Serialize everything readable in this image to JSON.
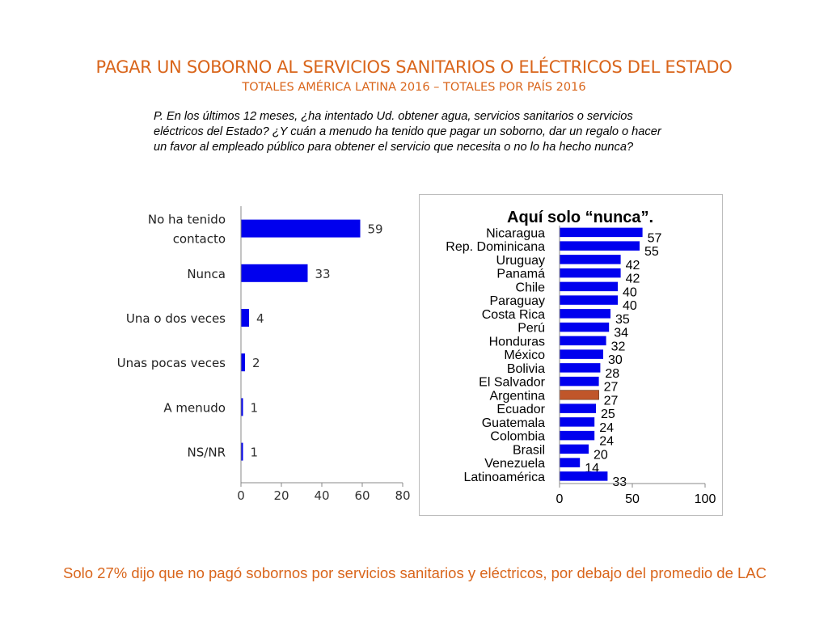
{
  "title": "PAGAR UN SOBORNO AL SERVICIOS SANITARIOS O ELÉCTRICOS DEL ESTADO",
  "subtitle": "TOTALES AMÉRICA LATINA 2016 – TOTALES POR PAÍS 2016",
  "question": "P. En los últimos 12 meses, ¿ha intentado Ud. obtener agua, servicios sanitarios o servicios eléctricos del Estado? ¿Y cuán a menudo ha tenido que pagar un soborno, dar un regalo o hacer un favor al empleado público para obtener el servicio que necesita o no lo ha hecho nunca?",
  "footer": "Solo 27% dijo que no pagó sobornos por servicios sanitarios y eléctricos, por debajo del promedio de LAC",
  "colors": {
    "bar": "#0000ee",
    "highlight": "#c0562a",
    "accent": "#d9651b"
  },
  "chart_data": [
    {
      "type": "bar",
      "orientation": "horizontal",
      "title": "",
      "categories": [
        [
          "No ha tenido",
          "contacto"
        ],
        [
          "Nunca"
        ],
        [
          "Una o dos veces"
        ],
        [
          "Unas pocas veces"
        ],
        [
          "A menudo"
        ],
        [
          "NS/NR"
        ]
      ],
      "values": [
        59,
        33,
        4,
        2,
        1,
        1
      ],
      "xlim": [
        0,
        80
      ],
      "xticks": [
        0,
        20,
        40,
        60,
        80
      ],
      "grid": false
    },
    {
      "type": "bar",
      "orientation": "horizontal",
      "title": "Aquí solo “nunca”.",
      "categories": [
        "Nicaragua",
        "Rep. Dominicana",
        "Uruguay",
        "Panamá",
        "Chile",
        "Paraguay",
        "Costa Rica",
        "Perú",
        "Honduras",
        "México",
        "Bolivia",
        "El Salvador",
        "Argentina",
        "Ecuador",
        "Guatemala",
        "Colombia",
        "Brasil",
        "Venezuela",
        "Latinoamérica"
      ],
      "values": [
        57,
        55,
        42,
        42,
        40,
        40,
        35,
        34,
        32,
        30,
        28,
        27,
        27,
        25,
        24,
        24,
        20,
        14,
        33
      ],
      "highlight": "Argentina",
      "xlim": [
        0,
        100
      ],
      "xticks": [
        0,
        50,
        100
      ],
      "grid": false
    }
  ]
}
